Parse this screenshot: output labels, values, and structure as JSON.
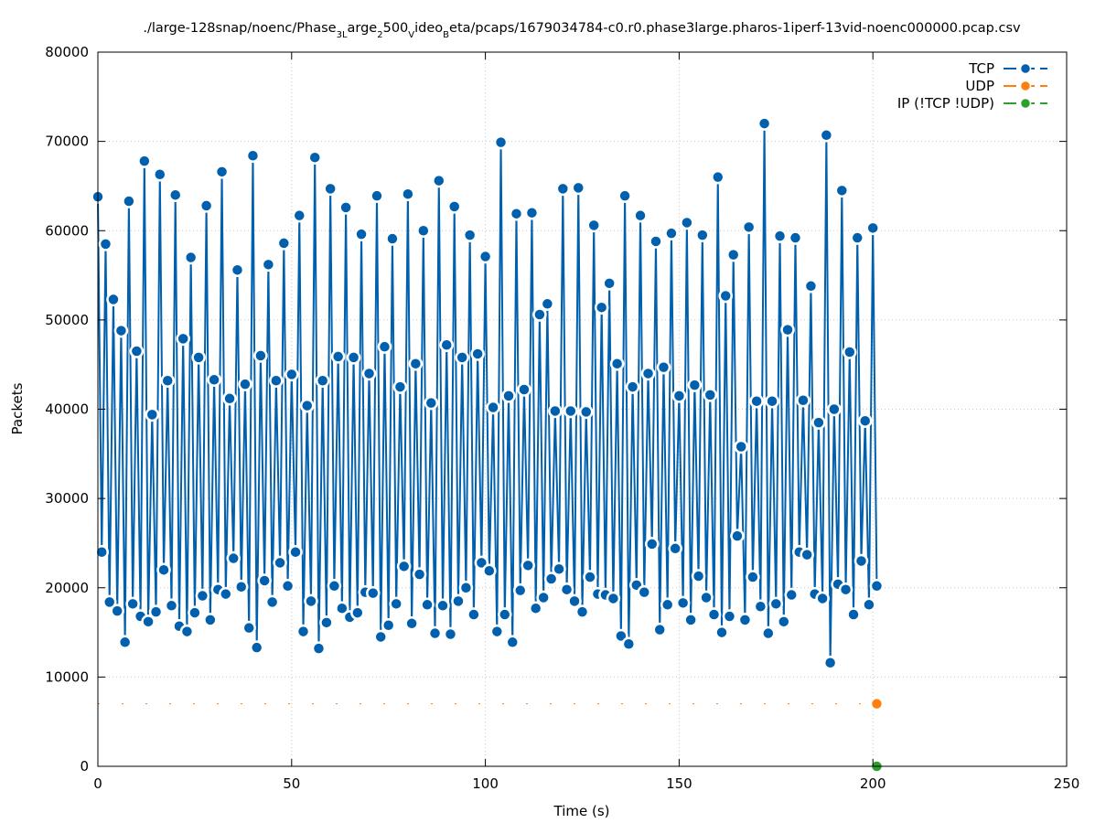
{
  "chart_data": {
    "type": "line",
    "title_parts": [
      {
        "text": "./large-128snap/noenc/Phase",
        "sub": false
      },
      {
        "text": "3L",
        "sub": true
      },
      {
        "text": "arge",
        "sub": false
      },
      {
        "text": "2",
        "sub": true
      },
      {
        "text": "500",
        "sub": false
      },
      {
        "text": "V",
        "sub": true
      },
      {
        "text": "ideo",
        "sub": false
      },
      {
        "text": "B",
        "sub": true
      },
      {
        "text": "eta/pcaps/1679034784-c0.r0.phase3large.pharos-1iperf-13vid-noenc000000.pcap.csv",
        "sub": false
      }
    ],
    "xlabel": "Time (s)",
    "ylabel": "Packets",
    "xlim": [
      0,
      250
    ],
    "ylim": [
      0,
      80000
    ],
    "xticks": [
      0,
      50,
      100,
      150,
      200,
      250
    ],
    "yticks": [
      0,
      10000,
      20000,
      30000,
      40000,
      50000,
      60000,
      70000,
      80000
    ],
    "grid": true,
    "legend_position": "top-right",
    "series": [
      {
        "name": "TCP",
        "color": "#0060ad",
        "x": [
          0,
          1,
          2,
          3,
          4,
          5,
          6,
          7,
          8,
          9,
          10,
          11,
          12,
          13,
          14,
          15,
          16,
          17,
          18,
          19,
          20,
          21,
          22,
          23,
          24,
          25,
          26,
          27,
          28,
          29,
          30,
          31,
          32,
          33,
          34,
          35,
          36,
          37,
          38,
          39,
          40,
          41,
          42,
          43,
          44,
          45,
          46,
          47,
          48,
          49,
          50,
          51,
          52,
          53,
          54,
          55,
          56,
          57,
          58,
          59,
          60,
          61,
          62,
          63,
          64,
          65,
          66,
          67,
          68,
          69,
          70,
          71,
          72,
          73,
          74,
          75,
          76,
          77,
          78,
          79,
          80,
          81,
          82,
          83,
          84,
          85,
          86,
          87,
          88,
          89,
          90,
          91,
          92,
          93,
          94,
          95,
          96,
          97,
          98,
          99,
          100,
          101,
          102,
          103,
          104,
          105,
          106,
          107,
          108,
          109,
          110,
          111,
          112,
          113,
          114,
          115,
          116,
          117,
          118,
          119,
          120,
          121,
          122,
          123,
          124,
          125,
          126,
          127,
          128,
          129,
          130,
          131,
          132,
          133,
          134,
          135,
          136,
          137,
          138,
          139,
          140,
          141,
          142,
          143,
          144,
          145,
          146,
          147,
          148,
          149,
          150,
          151,
          152,
          153,
          154,
          155,
          156,
          157,
          158,
          159,
          160,
          161,
          162,
          163,
          164,
          165,
          166,
          167,
          168,
          169,
          170,
          171,
          172,
          173,
          174,
          175,
          176,
          177,
          178,
          179,
          180,
          181,
          182,
          183,
          184,
          185,
          186,
          187,
          188,
          189,
          190,
          191,
          192,
          193,
          194,
          195,
          196,
          197,
          198,
          199,
          200,
          201
        ],
        "values": [
          63800,
          24000,
          58500,
          18400,
          52300,
          17400,
          48800,
          13900,
          63300,
          18200,
          46500,
          16800,
          67800,
          16200,
          39400,
          17300,
          66300,
          22000,
          43200,
          18000,
          64000,
          15700,
          47900,
          15100,
          57000,
          17200,
          45800,
          19100,
          62800,
          16400,
          43300,
          19800,
          66600,
          19300,
          41200,
          23300,
          55600,
          20100,
          42800,
          15500,
          68400,
          13300,
          46000,
          20800,
          56200,
          18400,
          43200,
          22800,
          58600,
          20200,
          43900,
          24000,
          61700,
          15100,
          40400,
          18500,
          68200,
          13200,
          43200,
          16100,
          64700,
          20200,
          45900,
          17700,
          62600,
          16700,
          45800,
          17200,
          59600,
          19500,
          44000,
          19400,
          63900,
          14500,
          47000,
          15800,
          59100,
          18200,
          42500,
          22400,
          64100,
          16000,
          45100,
          21500,
          60000,
          18100,
          40700,
          14900,
          65600,
          18000,
          47200,
          14800,
          62700,
          18500,
          45800,
          20000,
          59500,
          17000,
          46200,
          22800,
          57100,
          21900,
          40200,
          15100,
          69900,
          17000,
          41500,
          13900,
          61900,
          19700,
          42200,
          22500,
          62000,
          17700,
          50600,
          18900,
          51800,
          21000,
          39800,
          22100,
          64700,
          19800,
          39800,
          18500,
          64800,
          17300,
          39700,
          21200,
          60600,
          19300,
          51400,
          19200,
          54100,
          18800,
          45100,
          14600,
          63900,
          13700,
          42500,
          20300,
          61700,
          19500,
          44000,
          24900,
          58800,
          15300,
          44700,
          18100,
          59700,
          24400,
          41500,
          18300,
          60900,
          16400,
          42700,
          21300,
          59500,
          18900,
          41600,
          17000,
          66000,
          15000,
          52700,
          16800,
          57300,
          25800,
          35800,
          16400,
          60400,
          21200,
          40900,
          17900,
          72000,
          14900,
          40900,
          18200,
          59400,
          16200,
          48900,
          19200,
          59200,
          24000,
          41000,
          23700,
          53800,
          19300,
          38500,
          18800,
          70700,
          11600,
          40000,
          20400,
          64500,
          19800,
          46400,
          17000,
          59200,
          23000,
          38700,
          18100,
          60300,
          20200
        ]
      },
      {
        "name": "UDP",
        "color": "#ff7f0e",
        "x": [
          201
        ],
        "values": [
          7000
        ],
        "baseline_value": 7000
      },
      {
        "name": "IP (!TCP  !UDP)",
        "color": "#2ca02c",
        "x": [
          201
        ],
        "values": [
          0
        ]
      }
    ]
  }
}
